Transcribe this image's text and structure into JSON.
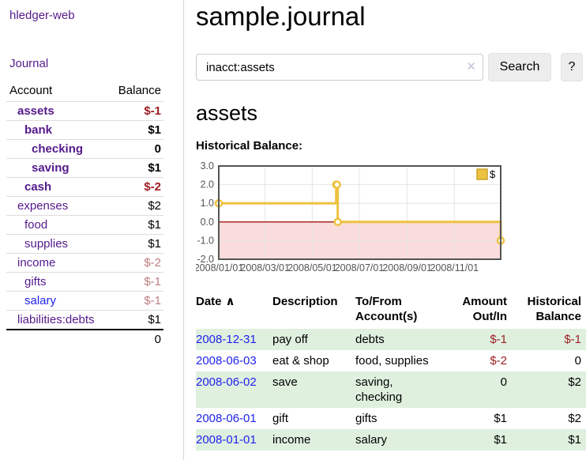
{
  "app": {
    "title": "hledger-web"
  },
  "sidebar": {
    "journal_link": "Journal",
    "accounts": {
      "headers": {
        "account": "Account",
        "balance": "Balance"
      },
      "rows": [
        {
          "name": "assets",
          "balance": "$-1"
        },
        {
          "name": "bank",
          "balance": "$1"
        },
        {
          "name": "checking",
          "balance": "0"
        },
        {
          "name": "saving",
          "balance": "$1"
        },
        {
          "name": "cash",
          "balance": "$-2"
        },
        {
          "name": "expenses",
          "balance": "$2"
        },
        {
          "name": "food",
          "balance": "$1"
        },
        {
          "name": "supplies",
          "balance": "$1"
        },
        {
          "name": "income",
          "balance": "$-2"
        },
        {
          "name": "gifts",
          "balance": "$-1"
        },
        {
          "name": "salary",
          "balance": "$-1"
        },
        {
          "name": "liabilities:debts",
          "balance": "$1"
        }
      ],
      "total": "0"
    }
  },
  "main": {
    "title": "sample.journal",
    "search": {
      "value": "inacct:assets",
      "clear_icon": "✕",
      "button_label": "Search",
      "help_label": "?"
    },
    "account_heading": "assets",
    "chart_label": "Historical Balance:"
  },
  "chart_data": {
    "type": "line",
    "title": "Historical Balance:",
    "step": true,
    "series": [
      {
        "name": "$",
        "points": [
          [
            "2008-01-01",
            1
          ],
          [
            "2008-06-01",
            2
          ],
          [
            "2008-06-02",
            2
          ],
          [
            "2008-06-03",
            0
          ],
          [
            "2008-12-31",
            -1
          ]
        ]
      }
    ],
    "x_start": "2008-01-01",
    "x_span_days": 365,
    "x_ticks": [
      "2008/01/01",
      "2008/03/01",
      "2008/05/01",
      "2008/07/01",
      "2008/09/01",
      "2008/11/01"
    ],
    "x_tick_days": [
      0,
      60,
      121,
      182,
      244,
      305
    ],
    "y_ticks": [
      "3.0",
      "2.0",
      "1.0",
      "0.0",
      "-1.0",
      "-2.0"
    ],
    "ylim": [
      -2,
      3
    ],
    "grid": true,
    "legend": {
      "label": "$",
      "position": "top-right"
    },
    "colors": {
      "series": "#edc240",
      "series_border": "#c9a42c",
      "negative_region": "#fbdcdc",
      "zero_line": "#a31414",
      "gridline": "#e4e4e4",
      "plot_border": "#545454",
      "axis_text": "#545454"
    }
  },
  "register": {
    "headers": {
      "date": "Date",
      "sort_indicator": "∧",
      "description": "Description",
      "to_from": "To/From Account(s)",
      "amount": "Amount Out/In",
      "historical": "Historical Balance"
    },
    "rows": [
      {
        "date": "2008-12-31",
        "description": "pay off",
        "accounts": "debts",
        "amount": "$-1",
        "balance": "$-1"
      },
      {
        "date": "2008-06-03",
        "description": "eat & shop",
        "accounts": "food, supplies",
        "amount": "$-2",
        "balance": "0"
      },
      {
        "date": "2008-06-02",
        "description": "save",
        "accounts": "saving, checking",
        "amount": "0",
        "balance": "$2"
      },
      {
        "date": "2008-06-01",
        "description": "gift",
        "accounts": "gifts",
        "amount": "$1",
        "balance": "$2"
      },
      {
        "date": "2008-01-01",
        "description": "income",
        "accounts": "salary",
        "amount": "$1",
        "balance": "$1"
      }
    ]
  }
}
